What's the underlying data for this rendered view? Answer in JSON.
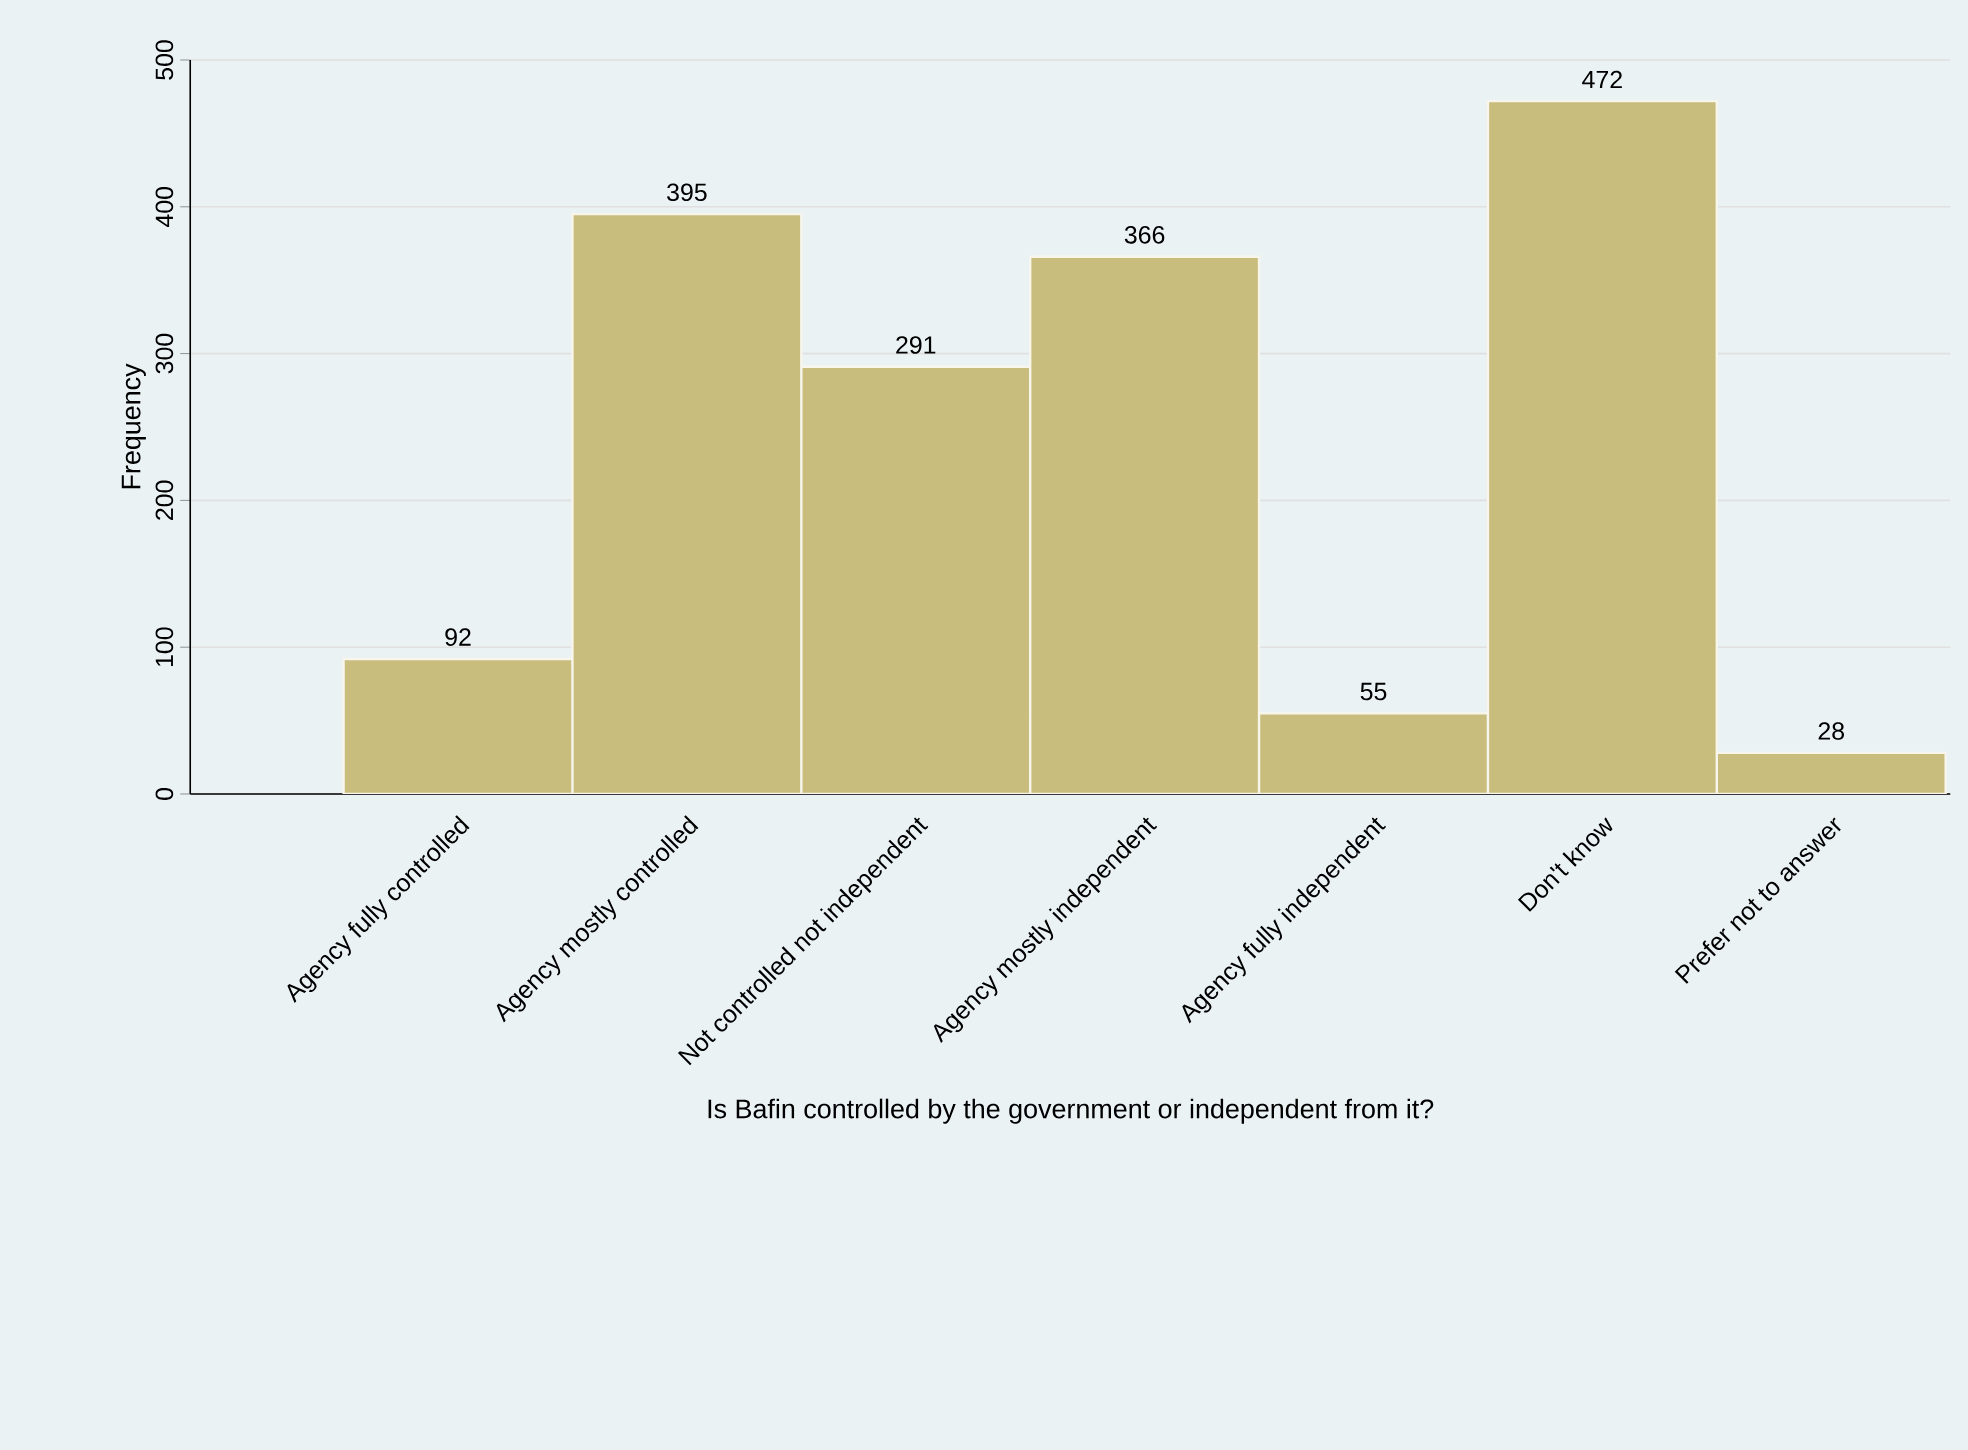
{
  "chart_data": {
    "type": "bar",
    "xlabel": "Is Bafin controlled by the government or independent from it?",
    "ylabel": "Frequency",
    "categories": [
      "Agency fully controlled",
      "Agency mostly controlled",
      "Not controlled not independent",
      "Agency mostly independent",
      "Agency fully independent",
      "Don't know",
      "Prefer not to answer"
    ],
    "values": [
      92,
      395,
      291,
      366,
      55,
      472,
      28
    ],
    "color": "#c9bd7e",
    "ylim": [
      0,
      500
    ],
    "yticks": [
      0,
      100,
      200,
      300,
      400,
      500
    ],
    "grid": "y",
    "data_labels": true
  }
}
